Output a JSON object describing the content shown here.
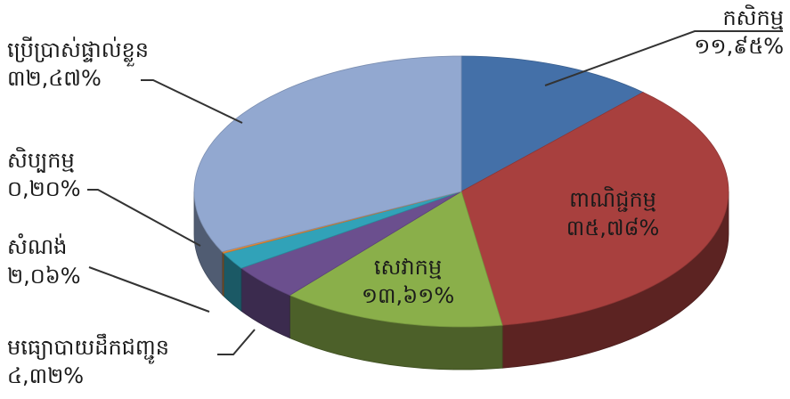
{
  "chart_data": {
    "type": "pie",
    "style": "3d-exploded-depth",
    "slices": [
      {
        "name": "កសិកម្ម",
        "value": 11.95,
        "value_label": "១១,៩៥%",
        "color": "#4470a8",
        "label_position": "outside"
      },
      {
        "name": "ពាណិជ្ជកម្ម",
        "value": 35.78,
        "value_label": "៣៥,៧៨%",
        "color": "#a8403e",
        "label_position": "inside"
      },
      {
        "name": "សេវាកម្ម",
        "value": 13.61,
        "value_label": "១៣,៦១%",
        "color": "#8aaf4a",
        "label_position": "inside"
      },
      {
        "name": "មធ្យោបាយដឹកជញ្ជូន",
        "value": 4.32,
        "value_label": "៤,៣២%",
        "color": "#6b4f8e",
        "label_position": "outside"
      },
      {
        "name": "សំណង់",
        "value": 2.06,
        "value_label": "២,០៦%",
        "color": "#31a2b8",
        "label_position": "outside"
      },
      {
        "name": "សិប្បកម្ម",
        "value": 0.2,
        "value_label": "០,២០%",
        "color": "#e08a3a",
        "label_position": "outside"
      },
      {
        "name": "ប្រើប្រាស់ផ្ទាល់ខ្លួន",
        "value": 32.47,
        "value_label": "៣២,៤៧%",
        "color": "#92a8d0",
        "label_position": "outside"
      }
    ]
  }
}
